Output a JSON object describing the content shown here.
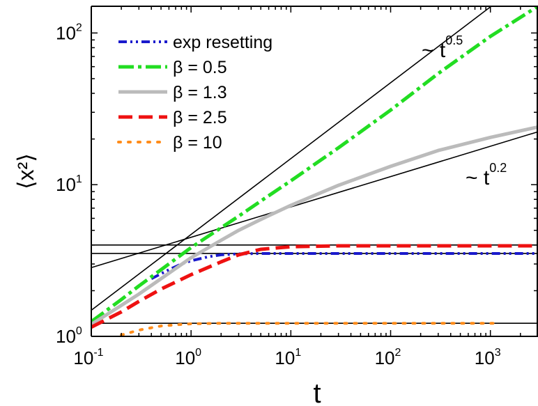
{
  "chart_data": {
    "type": "line",
    "xscale": "log",
    "yscale": "log",
    "xlim": [
      0.1,
      3000
    ],
    "ylim": [
      1,
      150
    ],
    "xlabel": "t",
    "ylabel": "⟨x²⟩",
    "x_ticks": [
      {
        "value": 0.1,
        "base": "10",
        "exp": "-1"
      },
      {
        "value": 1,
        "base": "10",
        "exp": "0"
      },
      {
        "value": 10,
        "base": "10",
        "exp": "1"
      },
      {
        "value": 100,
        "base": "10",
        "exp": "2"
      },
      {
        "value": 1000,
        "base": "10",
        "exp": "3"
      }
    ],
    "y_ticks": [
      {
        "value": 1,
        "base": "10",
        "exp": "0"
      },
      {
        "value": 10,
        "base": "10",
        "exp": "1"
      },
      {
        "value": 100,
        "base": "10",
        "exp": "2"
      }
    ],
    "legend_position": "top-left",
    "series": [
      {
        "name": "exp resetting",
        "color": "#1a1acc",
        "style": "dash-dot-dot",
        "x": [
          0.4,
          0.6,
          0.8,
          1,
          1.5,
          2,
          3,
          5,
          10,
          30,
          100,
          300,
          1000,
          3000
        ],
        "y": [
          2.4,
          2.75,
          3.0,
          3.15,
          3.35,
          3.45,
          3.5,
          3.52,
          3.52,
          3.52,
          3.52,
          3.52,
          3.52,
          3.52
        ]
      },
      {
        "name": "β = 0.5",
        "color": "#22dd22",
        "style": "dash-dot",
        "x": [
          0.1,
          0.2,
          0.3,
          0.5,
          1,
          2,
          3,
          5,
          10,
          30,
          100,
          300,
          1000,
          3000
        ],
        "y": [
          1.25,
          1.75,
          2.15,
          2.75,
          3.85,
          5.2,
          6.2,
          7.8,
          10.6,
          17.5,
          31,
          54,
          95,
          150
        ]
      },
      {
        "name": "β = 1.3",
        "color": "#bbbbbb",
        "style": "solid",
        "x": [
          0.1,
          0.2,
          0.3,
          0.5,
          1,
          2,
          3,
          5,
          10,
          30,
          100,
          300,
          1000,
          3000
        ],
        "y": [
          1.2,
          1.6,
          1.9,
          2.4,
          3.3,
          4.3,
          5.0,
          5.9,
          7.3,
          9.9,
          13.2,
          16.8,
          20.5,
          24
        ]
      },
      {
        "name": "β = 2.5",
        "color": "#ee1111",
        "style": "dashed",
        "x": [
          0.1,
          0.2,
          0.3,
          0.5,
          1,
          2,
          3,
          5,
          10,
          30,
          100,
          300,
          1000,
          3000
        ],
        "y": [
          1.15,
          1.45,
          1.7,
          2.05,
          2.55,
          3.1,
          3.45,
          3.75,
          3.9,
          3.95,
          3.95,
          3.95,
          3.95,
          3.95
        ]
      },
      {
        "name": "β = 10",
        "color": "#ff8c1a",
        "style": "dotted",
        "x": [
          0.2,
          0.3,
          0.5,
          0.8,
          1,
          2,
          5,
          10,
          30,
          100,
          300,
          1000,
          1200
        ],
        "y": [
          1.02,
          1.1,
          1.17,
          1.2,
          1.21,
          1.22,
          1.22,
          1.22,
          1.22,
          1.22,
          1.22,
          1.22,
          1.22
        ]
      }
    ],
    "reference_lines": [
      {
        "kind": "power",
        "coef": 4.7,
        "exp": 0.5,
        "label_base": "~ t",
        "label_exp": "0.5"
      },
      {
        "kind": "power",
        "coef": 4.5,
        "exp": 0.2,
        "label_base": "~ t",
        "label_exp": "0.2"
      },
      {
        "kind": "horizontal",
        "y": 4.0
      },
      {
        "kind": "horizontal",
        "y": 3.52
      },
      {
        "kind": "horizontal",
        "y": 1.22
      }
    ]
  }
}
